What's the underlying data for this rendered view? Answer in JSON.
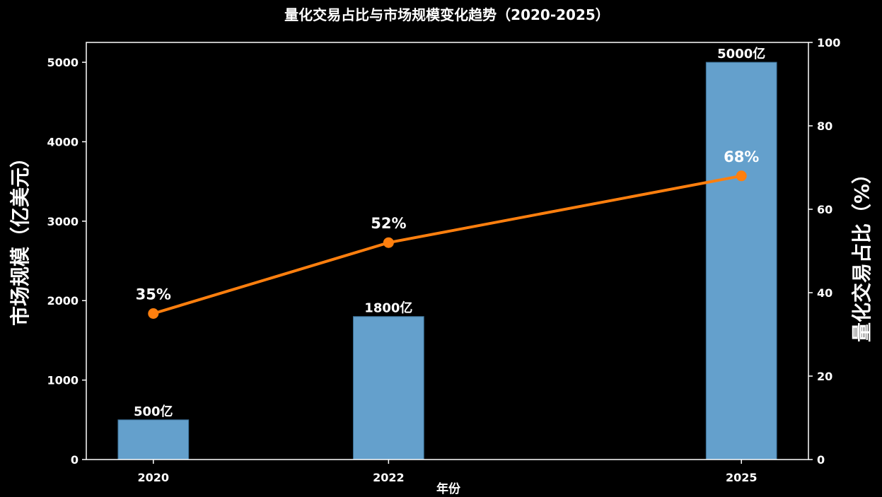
{
  "chart_data": {
    "type": "bar",
    "title": "量化交易占比与市场规模变化趋势（2020-2025）",
    "xlabel": "年份",
    "ylabel": "市场规模（亿美元）",
    "y2label": "量化交易占比（%）",
    "categories": [
      "2020",
      "2022",
      "2025"
    ],
    "x": [
      2020,
      2022,
      2025
    ],
    "ylim": [
      0,
      5250
    ],
    "y2lim": [
      0,
      100
    ],
    "yticks": [
      0,
      1000,
      2000,
      3000,
      4000,
      5000
    ],
    "y2ticks": [
      0,
      20,
      40,
      60,
      80,
      100
    ],
    "grid": false,
    "series": [
      {
        "type": "bar",
        "axis": "left",
        "values": [
          500,
          1800,
          5000
        ],
        "labels": [
          "500亿",
          "1800亿",
          "5000亿"
        ]
      },
      {
        "type": "line",
        "axis": "right",
        "values": [
          35,
          52,
          68
        ],
        "labels": [
          "35%",
          "52%",
          "68%"
        ]
      }
    ],
    "colors": {
      "bar": "#64a0cc",
      "line": "#ff7f0e",
      "axis": "#ffffff",
      "background": "#000000"
    }
  }
}
